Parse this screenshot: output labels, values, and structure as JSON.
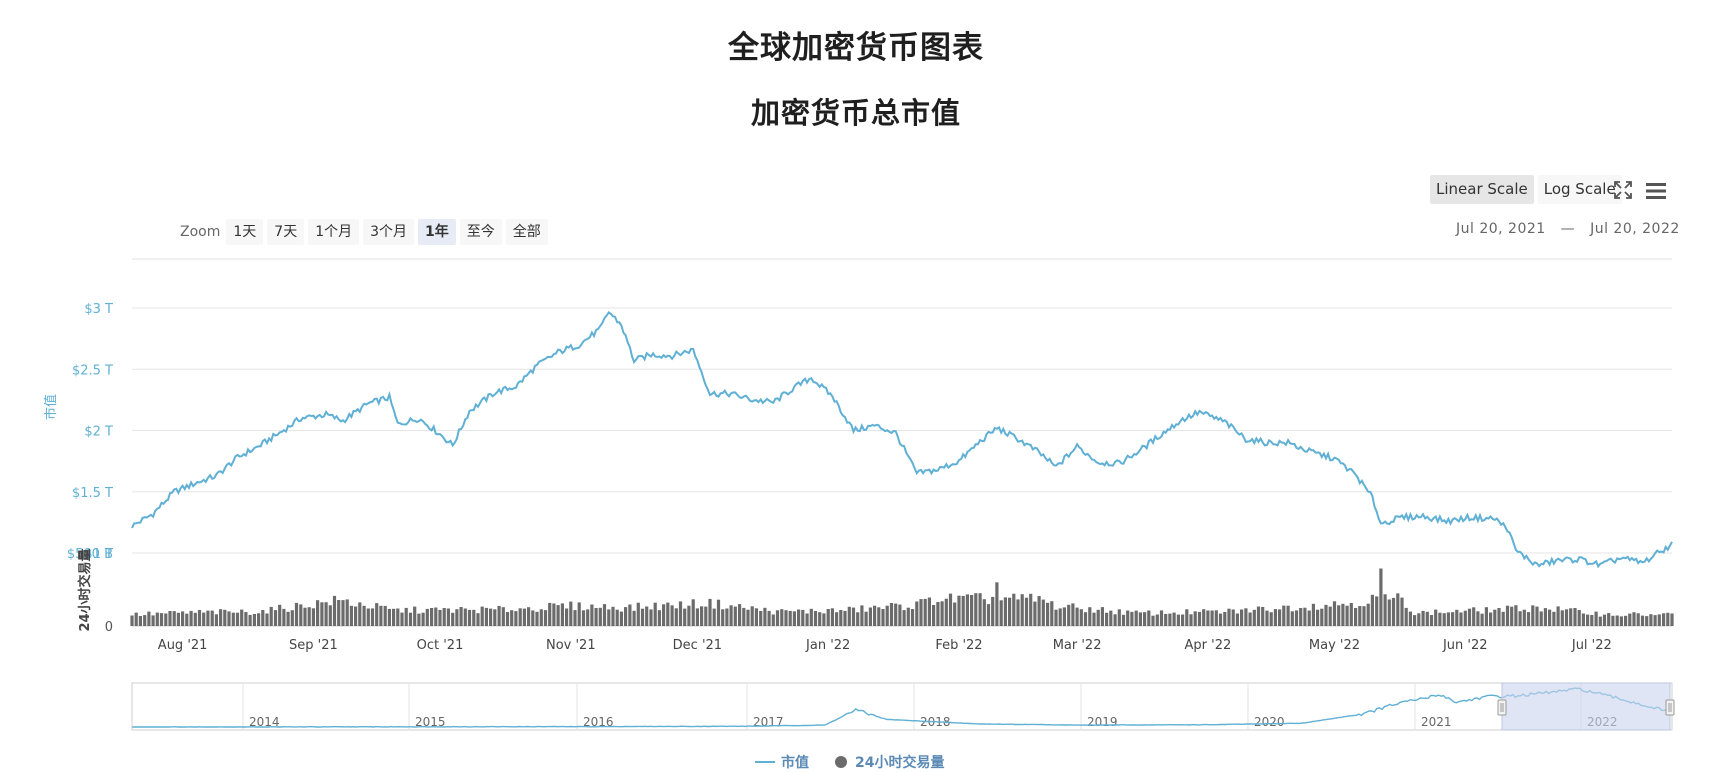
{
  "page": {
    "title": "全球加密货币图表"
  },
  "controls": {
    "scale_buttons": [
      {
        "label": "Linear Scale",
        "active": true
      },
      {
        "label": "Log Scale",
        "active": false
      }
    ],
    "icons": [
      "fullscreen-icon",
      "menu-icon"
    ],
    "zoom_label": "Zoom",
    "zoom_buttons": [
      {
        "label": "1天",
        "active": false
      },
      {
        "label": "7天",
        "active": false
      },
      {
        "label": "1个月",
        "active": false
      },
      {
        "label": "3个月",
        "active": false
      },
      {
        "label": "1年",
        "active": true
      },
      {
        "label": "至今",
        "active": false
      },
      {
        "label": "全部",
        "active": false
      }
    ],
    "date_from": "Jul 20, 2021",
    "date_sep": "—",
    "date_to": "Jul 20, 2022"
  },
  "colors": {
    "market_cap": "#5fb0d4",
    "volume": "#6b6b6b",
    "navigator_mask": "#c9d4ec",
    "grid": "#e6e6e6"
  },
  "chart_data": {
    "type": "line",
    "title": "加密货币总市值",
    "x_axis": {
      "range": [
        "2021-07-20",
        "2022-07-20"
      ],
      "tick_labels": [
        "Aug '21",
        "Sep '21",
        "Oct '21",
        "Nov '21",
        "Dec '21",
        "Jan '22",
        "Feb '22",
        "Mar '22",
        "Apr '22",
        "May '22",
        "Jun '22",
        "Jul '22"
      ]
    },
    "y_axis_main": {
      "label": "市值",
      "unit": "USD trillions",
      "ylim": [
        1.0,
        3.0
      ],
      "tick_values": [
        1,
        1.5,
        2,
        2.5,
        3
      ],
      "tick_labels": [
        "$1 T",
        "$1.5 T",
        "$2 T",
        "$2.5 T",
        "$3 T"
      ]
    },
    "y_axis_volume": {
      "label": "24小时交易量",
      "unit": "USD billions",
      "ylim": [
        0,
        500
      ],
      "tick_values": [
        0,
        500
      ],
      "tick_labels": [
        "0",
        "$500 B"
      ]
    },
    "series": [
      {
        "name": "市值",
        "unit": "USD trillions",
        "points": [
          [
            "2021-07-20",
            1.22
          ],
          [
            "2021-07-25",
            1.32
          ],
          [
            "2021-07-30",
            1.5
          ],
          [
            "2021-08-04",
            1.57
          ],
          [
            "2021-08-09",
            1.63
          ],
          [
            "2021-08-14",
            1.78
          ],
          [
            "2021-08-19",
            1.87
          ],
          [
            "2021-08-24",
            1.98
          ],
          [
            "2021-08-29",
            2.1
          ],
          [
            "2021-09-04",
            2.13
          ],
          [
            "2021-09-08",
            2.08
          ],
          [
            "2021-09-14",
            2.22
          ],
          [
            "2021-09-19",
            2.27
          ],
          [
            "2021-09-21",
            2.05
          ],
          [
            "2021-09-26",
            2.1
          ],
          [
            "2021-10-01",
            1.97
          ],
          [
            "2021-10-04",
            1.88
          ],
          [
            "2021-10-08",
            2.16
          ],
          [
            "2021-10-14",
            2.31
          ],
          [
            "2021-10-19",
            2.36
          ],
          [
            "2021-10-24",
            2.53
          ],
          [
            "2021-10-29",
            2.64
          ],
          [
            "2021-11-03",
            2.7
          ],
          [
            "2021-11-08",
            2.83
          ],
          [
            "2021-11-10",
            2.97
          ],
          [
            "2021-11-13",
            2.86
          ],
          [
            "2021-11-16",
            2.57
          ],
          [
            "2021-11-20",
            2.62
          ],
          [
            "2021-11-25",
            2.61
          ],
          [
            "2021-11-30",
            2.66
          ],
          [
            "2021-12-04",
            2.3
          ],
          [
            "2021-12-09",
            2.3
          ],
          [
            "2021-12-14",
            2.25
          ],
          [
            "2021-12-19",
            2.23
          ],
          [
            "2021-12-24",
            2.35
          ],
          [
            "2021-12-28",
            2.43
          ],
          [
            "2022-01-02",
            2.28
          ],
          [
            "2022-01-07",
            2.0
          ],
          [
            "2022-01-12",
            2.04
          ],
          [
            "2022-01-17",
            1.98
          ],
          [
            "2022-01-22",
            1.65
          ],
          [
            "2022-01-27",
            1.68
          ],
          [
            "2022-02-01",
            1.75
          ],
          [
            "2022-02-06",
            1.91
          ],
          [
            "2022-02-10",
            2.02
          ],
          [
            "2022-02-15",
            1.93
          ],
          [
            "2022-02-20",
            1.82
          ],
          [
            "2022-02-24",
            1.7
          ],
          [
            "2022-03-01",
            1.87
          ],
          [
            "2022-03-06",
            1.74
          ],
          [
            "2022-03-11",
            1.73
          ],
          [
            "2022-03-16",
            1.84
          ],
          [
            "2022-03-21",
            1.97
          ],
          [
            "2022-03-26",
            2.09
          ],
          [
            "2022-03-30",
            2.15
          ],
          [
            "2022-04-05",
            2.07
          ],
          [
            "2022-04-10",
            1.93
          ],
          [
            "2022-04-15",
            1.9
          ],
          [
            "2022-04-20",
            1.9
          ],
          [
            "2022-04-25",
            1.83
          ],
          [
            "2022-05-01",
            1.77
          ],
          [
            "2022-05-06",
            1.64
          ],
          [
            "2022-05-10",
            1.45
          ],
          [
            "2022-05-12",
            1.24
          ],
          [
            "2022-05-17",
            1.29
          ],
          [
            "2022-05-22",
            1.3
          ],
          [
            "2022-05-28",
            1.26
          ],
          [
            "2022-06-02",
            1.29
          ],
          [
            "2022-06-08",
            1.28
          ],
          [
            "2022-06-11",
            1.2
          ],
          [
            "2022-06-13",
            1.02
          ],
          [
            "2022-06-18",
            0.9
          ],
          [
            "2022-06-23",
            0.94
          ],
          [
            "2022-06-28",
            0.95
          ],
          [
            "2022-07-03",
            0.9
          ],
          [
            "2022-07-08",
            0.96
          ],
          [
            "2022-07-13",
            0.92
          ],
          [
            "2022-07-20",
            1.07
          ]
        ]
      },
      {
        "name": "24小时交易量",
        "unit": "USD billions",
        "points": [
          [
            "2021-07-20",
            80
          ],
          [
            "2021-08-04",
            95
          ],
          [
            "2021-08-19",
            100
          ],
          [
            "2021-09-07",
            180
          ],
          [
            "2021-09-20",
            110
          ],
          [
            "2021-10-15",
            115
          ],
          [
            "2021-11-01",
            140
          ],
          [
            "2021-11-15",
            130
          ],
          [
            "2021-12-04",
            160
          ],
          [
            "2021-12-20",
            100
          ],
          [
            "2022-01-05",
            110
          ],
          [
            "2022-01-22",
            150
          ],
          [
            "2022-02-10",
            320
          ],
          [
            "2022-02-24",
            140
          ],
          [
            "2022-03-15",
            90
          ],
          [
            "2022-04-05",
            100
          ],
          [
            "2022-05-09",
            170
          ],
          [
            "2022-05-12",
            390
          ],
          [
            "2022-05-20",
            90
          ],
          [
            "2022-06-13",
            120
          ],
          [
            "2022-06-18",
            130
          ],
          [
            "2022-07-05",
            80
          ],
          [
            "2022-07-20",
            80
          ]
        ]
      }
    ],
    "navigator": {
      "years": [
        "2014",
        "2015",
        "2016",
        "2017",
        "2018",
        "2019",
        "2020",
        "2021",
        "2022"
      ],
      "selected_range": [
        "2021-07-20",
        "2022-07-20"
      ]
    },
    "legend": [
      "市值",
      "24小时交易量"
    ],
    "grid": true,
    "legend_position": "bottom-center"
  }
}
